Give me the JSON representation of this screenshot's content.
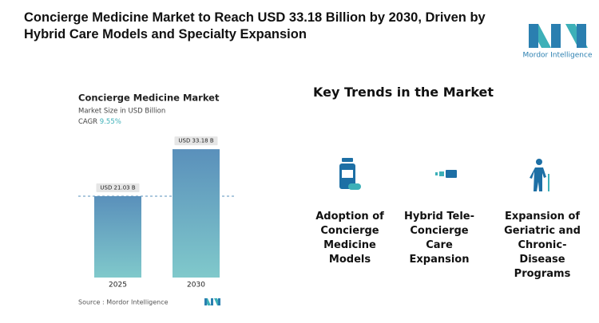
{
  "header": {
    "title": "Concierge Medicine Market to Reach USD 33.18 Billion by 2030, Driven by Hybrid Care Models and Specialty Expansion",
    "logo": "Mordor Intelligence"
  },
  "chart_data": {
    "type": "bar",
    "title": "Concierge Medicine Market",
    "subtitle": "Market Size in USD Billion",
    "cagr_label": "CAGR",
    "cagr": "9.55%",
    "categories": [
      "2025",
      "2030"
    ],
    "values": [
      21.03,
      33.18
    ],
    "value_labels": [
      "USD 21.03 B",
      "USD 33.18 B"
    ],
    "colors": [
      "#5a90bb",
      "#80c9cb"
    ],
    "ylim": [
      0,
      40
    ],
    "source": "Source : Mordor Intelligence"
  },
  "trends": {
    "title": "Key Trends in the Market",
    "items": [
      "Adoption of Concierge Medicine Models",
      "Hybrid Tele-Concierge Care Expansion",
      "Expansion of Geriatric and Chronic-Disease Programs"
    ]
  }
}
